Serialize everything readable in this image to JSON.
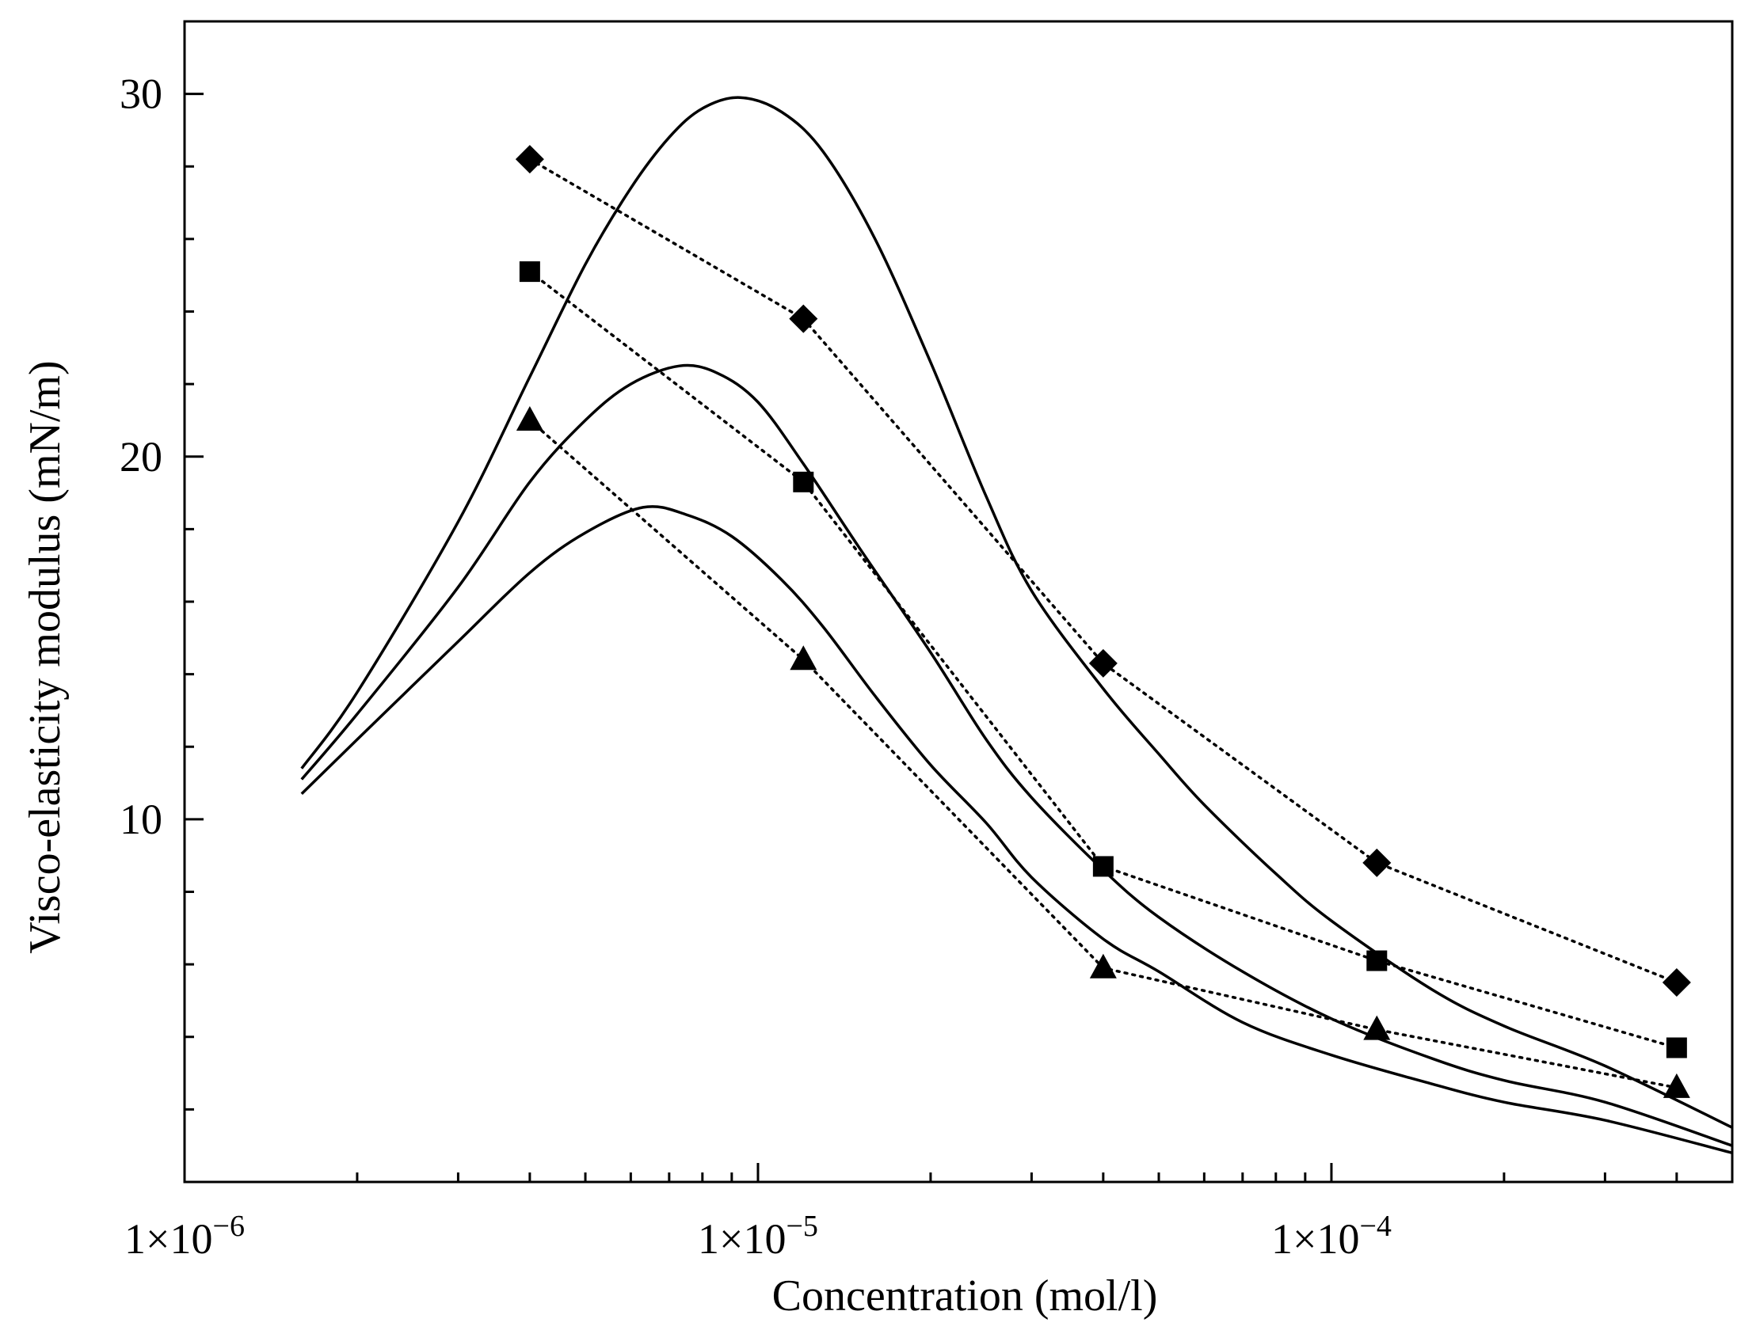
{
  "chart_data": {
    "type": "scatter",
    "title": "",
    "xlabel": "Concentration (mol/l)",
    "ylabel": "Visco-elasticity modulus (mN/m)",
    "xscale": "log",
    "xlim": [
      1e-06,
      0.0005
    ],
    "ylim": [
      0,
      32
    ],
    "x_ticks": [
      {
        "value": 1e-06,
        "label": "1×10",
        "exp": "−6"
      },
      {
        "value": 1e-05,
        "label": "1×10",
        "exp": "−5"
      },
      {
        "value": 0.0001,
        "label": "1×10",
        "exp": "−4"
      }
    ],
    "y_ticks": [
      {
        "value": 10,
        "label": "10"
      },
      {
        "value": 20,
        "label": "20"
      },
      {
        "value": 30,
        "label": "30"
      }
    ],
    "series": [
      {
        "name": "diamond",
        "marker": "diamond",
        "x": [
          4e-06,
          1.2e-05,
          4e-05,
          0.00012,
          0.0004
        ],
        "y": [
          28.2,
          23.8,
          14.3,
          8.8,
          5.5
        ]
      },
      {
        "name": "square",
        "marker": "square",
        "x": [
          4e-06,
          1.2e-05,
          4e-05,
          0.00012,
          0.0004
        ],
        "y": [
          25.1,
          19.3,
          8.7,
          6.1,
          3.7
        ]
      },
      {
        "name": "triangle",
        "marker": "triangle",
        "x": [
          4e-06,
          1.2e-05,
          4e-05,
          0.00012,
          0.0004
        ],
        "y": [
          21.0,
          14.4,
          5.9,
          4.2,
          2.6
        ]
      }
    ],
    "fit_curves": [
      {
        "name": "fit-upper",
        "x": [
          1.6e-06,
          2e-06,
          3e-06,
          4e-06,
          5e-06,
          6e-06,
          7e-06,
          8e-06,
          9.3e-06,
          1.1e-05,
          1.3e-05,
          1.6e-05,
          2e-05,
          2.5e-05,
          3e-05,
          4e-05,
          5e-05,
          6e-05,
          8e-05,
          0.0001,
          0.00015,
          0.0002,
          0.0003,
          0.0005
        ],
        "y": [
          11.4,
          13.5,
          18.2,
          22.2,
          25.3,
          27.4,
          28.8,
          29.6,
          29.9,
          29.5,
          28.4,
          26.0,
          22.6,
          18.9,
          16.3,
          13.6,
          11.8,
          10.4,
          8.5,
          7.2,
          5.3,
          4.3,
          3.2,
          1.5
        ]
      },
      {
        "name": "fit-middle",
        "x": [
          1.6e-06,
          2e-06,
          3e-06,
          4e-06,
          5e-06,
          6e-06,
          7.3e-06,
          8.5e-06,
          1e-05,
          1.2e-05,
          1.5e-05,
          2e-05,
          2.5e-05,
          3e-05,
          4e-05,
          5e-05,
          7e-05,
          0.0001,
          0.00015,
          0.0002,
          0.0003,
          0.0005
        ],
        "y": [
          11.1,
          12.9,
          16.4,
          19.3,
          21.0,
          22.0,
          22.5,
          22.3,
          21.5,
          19.8,
          17.5,
          14.6,
          12.2,
          10.6,
          8.6,
          7.3,
          5.8,
          4.5,
          3.4,
          2.8,
          2.2,
          1.0
        ]
      },
      {
        "name": "fit-lower",
        "x": [
          1.6e-06,
          2e-06,
          3e-06,
          4e-06,
          5e-06,
          6.3e-06,
          7.5e-06,
          9e-06,
          1.1e-05,
          1.3e-05,
          1.6e-05,
          2e-05,
          2.5e-05,
          3e-05,
          4e-05,
          5e-05,
          7e-05,
          0.0001,
          0.00015,
          0.0002,
          0.0003,
          0.0005
        ],
        "y": [
          10.7,
          12.2,
          14.9,
          16.8,
          17.9,
          18.6,
          18.4,
          17.8,
          16.6,
          15.3,
          13.4,
          11.5,
          9.9,
          8.4,
          6.7,
          5.8,
          4.4,
          3.5,
          2.7,
          2.2,
          1.7,
          0.8
        ]
      }
    ]
  }
}
